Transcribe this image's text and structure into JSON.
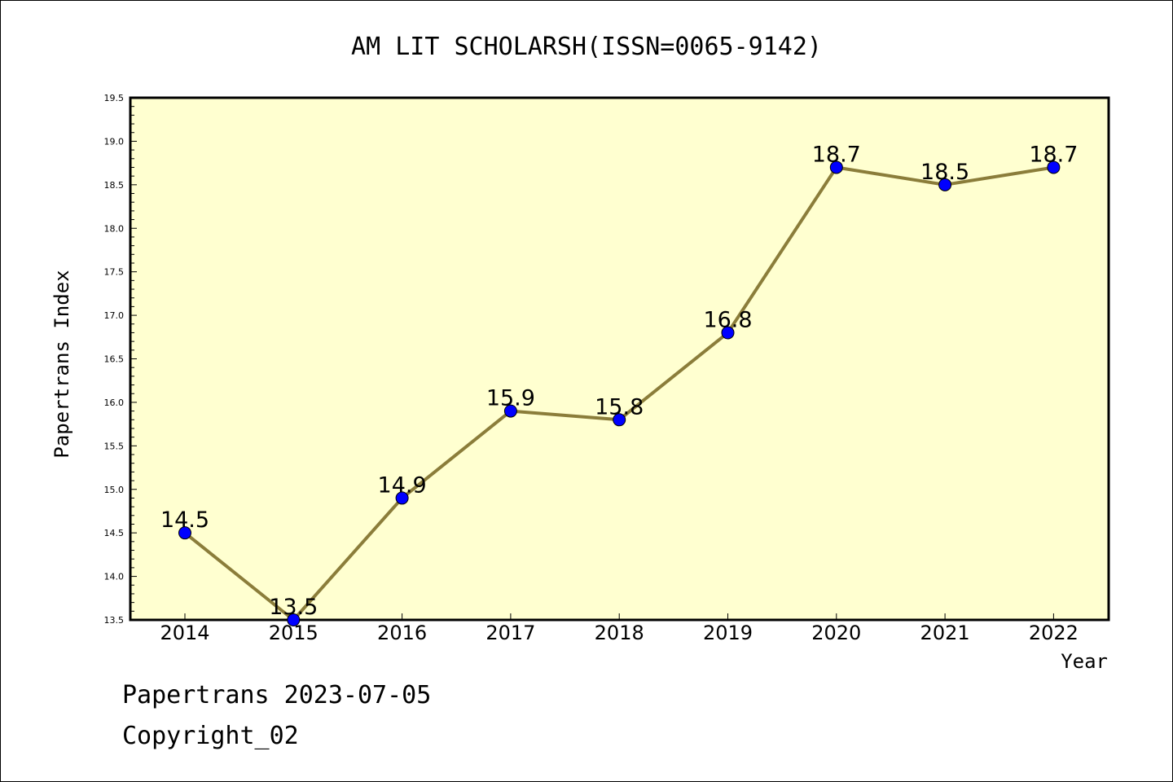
{
  "footer": {
    "date_line": "Papertrans 2023-07-05",
    "copyright": "Copyright_02"
  },
  "colors": {
    "plot_background": "#ffffd0",
    "line": "#8b7d3a",
    "marker": "#0000ff",
    "axis": "#000000"
  },
  "chart_data": {
    "type": "line",
    "title": "AM LIT SCHOLARSH(ISSN=0065-9142)",
    "xlabel": "Year",
    "ylabel": "Papertrans Index",
    "x": [
      "2014",
      "2015",
      "2016",
      "2017",
      "2018",
      "2019",
      "2020",
      "2021",
      "2022"
    ],
    "series": [
      {
        "values": [
          14.5,
          13.5,
          14.9,
          15.9,
          15.8,
          16.8,
          18.7,
          18.5,
          18.7
        ],
        "labels": [
          "14.5",
          "13.5",
          "14.9",
          "15.9",
          "15.8",
          "16.8",
          "18.7",
          "18.5",
          "18.7"
        ]
      }
    ],
    "ylim": [
      13.5,
      19.5
    ],
    "yticks": [
      "13.5",
      "14.0",
      "14.5",
      "15.0",
      "15.5",
      "16.0",
      "16.5",
      "17.0",
      "17.5",
      "18.0",
      "18.5",
      "19.0",
      "19.5"
    ],
    "grid": false,
    "legend": "none"
  }
}
